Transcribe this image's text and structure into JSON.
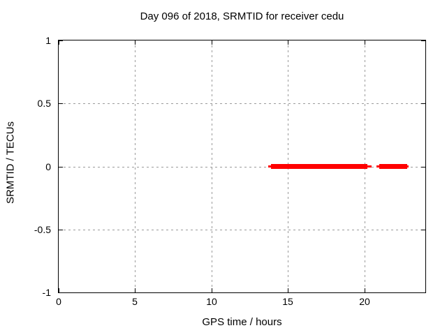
{
  "chart_data": {
    "type": "line",
    "title": "Day 096 of 2018, SRMTID for receiver cedu",
    "xlabel": "GPS time / hours",
    "ylabel": "SRMTID / TECUs",
    "xlim": [
      0,
      24
    ],
    "ylim": [
      -1,
      1
    ],
    "x_ticks": [
      0,
      5,
      10,
      15,
      20
    ],
    "y_ticks": [
      -1,
      -0.5,
      0,
      0.5,
      1
    ],
    "grid": true,
    "legend_position": "none",
    "series": [
      {
        "name": "SRMTID",
        "color": "#ff0000",
        "style": "thick horizontal band (dense points) with thin line ends, constant value 0",
        "segments": [
          {
            "y": 0,
            "line_start": 13.7,
            "line_end": 20.5,
            "marker_start": 13.9,
            "marker_end": 20.2
          },
          {
            "y": 0,
            "line_start": 20.8,
            "line_end": 22.9,
            "marker_start": 21.0,
            "marker_end": 22.8
          }
        ]
      }
    ],
    "colors": {
      "background": "#ffffff",
      "border": "#000000",
      "grid": "#9a9a9a",
      "text": "#000000",
      "series": "#ff0000"
    }
  }
}
